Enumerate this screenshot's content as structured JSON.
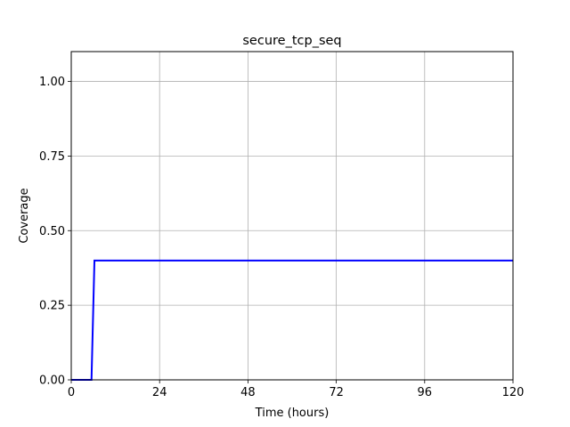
{
  "chart_data": {
    "type": "line",
    "title": "secure_tcp_seq",
    "xlabel": "Time (hours)",
    "ylabel": "Coverage",
    "xlim": [
      0,
      120
    ],
    "ylim": [
      0,
      1.1
    ],
    "xticks": [
      0,
      24,
      48,
      72,
      96,
      120
    ],
    "xtick_labels": [
      "0",
      "24",
      "48",
      "72",
      "96",
      "120"
    ],
    "yticks": [
      0,
      0.25,
      0.5,
      0.75,
      1.0
    ],
    "ytick_labels": [
      "0.00",
      "0.25",
      "0.50",
      "0.75",
      "1.00"
    ],
    "grid": true,
    "series": [
      {
        "color": "#0000ff",
        "x": [
          0,
          5.5,
          6.3,
          120
        ],
        "y": [
          0,
          0,
          0.4,
          0.4
        ]
      }
    ]
  }
}
